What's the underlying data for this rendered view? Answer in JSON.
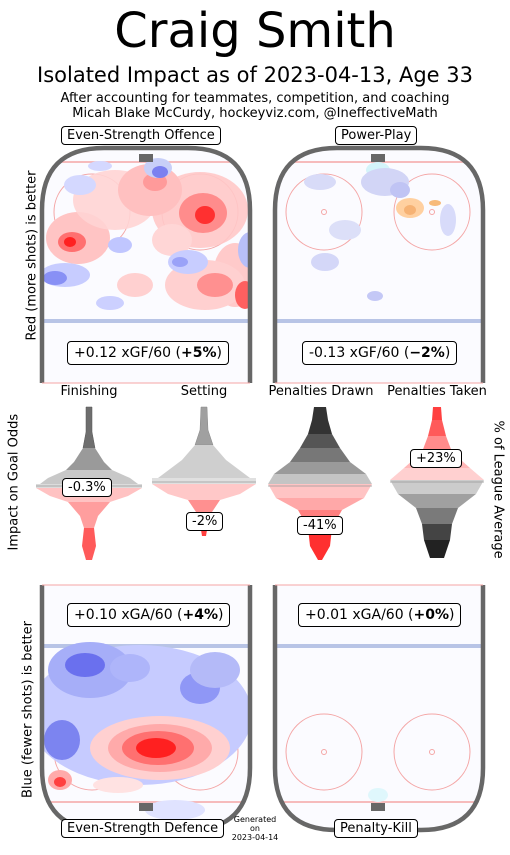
{
  "header": {
    "title": "Craig Smith",
    "subtitle": "Isolated Impact as of 2023-04-13, Age 33",
    "credit_line1": "After accounting for teammates, competition, and coaching",
    "credit_line2": "Micah Blake McCurdy, hockeyviz.com, @IneffectiveMath"
  },
  "axis_labels": {
    "top_left": "Red (more shots) is better",
    "middle_left": "Impact on Goal Odds",
    "middle_right": "% of League Average",
    "bottom_left": "Blue (fewer shots) is better"
  },
  "generated": {
    "line1": "Generated",
    "line2": "on",
    "line3": "2023-04-14"
  },
  "chart_data": [
    {
      "type": "heatmap",
      "title": "Even-Strength Offence",
      "annotation": {
        "value": "+0.12 xGF/60 (",
        "pct": "+5%",
        "close": ")"
      }
    },
    {
      "type": "heatmap",
      "title": "Power-Play",
      "annotation": {
        "value": "-0.13 xGF/60 (",
        "pct": "−2%",
        "close": ")"
      }
    },
    {
      "type": "violin",
      "columns": [
        {
          "name": "Finishing",
          "value_label": "-0.3%",
          "direction": "neutral"
        },
        {
          "name": "Setting",
          "value_label": "-2%",
          "direction": "below"
        },
        {
          "name": "Penalties Drawn",
          "value_label": "-41%",
          "direction": "below"
        },
        {
          "name": "Penalties Taken",
          "value_label": "+23%",
          "direction": "above"
        }
      ]
    },
    {
      "type": "heatmap",
      "title": "Even-Strength Defence",
      "annotation": {
        "value": "+0.10 xGA/60 (",
        "pct": "+4%",
        "close": ")"
      }
    },
    {
      "type": "heatmap",
      "title": "Penalty-Kill",
      "annotation": {
        "value": "+0.01 xGA/60 (",
        "pct": "+0%",
        "close": ")"
      }
    }
  ]
}
